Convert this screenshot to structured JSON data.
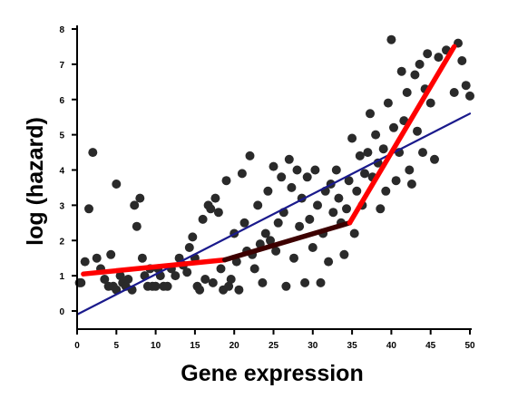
{
  "chart_data": {
    "type": "scatter",
    "xlabel": "Gene expression",
    "ylabel": "log (hazard)",
    "xlim": [
      0,
      50
    ],
    "ylim": [
      -0.5,
      8
    ],
    "x_ticks": [
      0,
      5,
      10,
      15,
      20,
      25,
      30,
      35,
      40,
      45,
      50
    ],
    "y_ticks": [
      0,
      1,
      2,
      3,
      4,
      5,
      6,
      7,
      8
    ],
    "grid": false,
    "legend": "none",
    "points": [
      [
        0.3,
        0.8
      ],
      [
        0.5,
        0.8
      ],
      [
        1.0,
        1.4
      ],
      [
        1.5,
        2.9
      ],
      [
        2.0,
        4.5
      ],
      [
        2.5,
        1.5
      ],
      [
        3.0,
        1.2
      ],
      [
        3.5,
        0.9
      ],
      [
        4.0,
        0.7
      ],
      [
        4.3,
        1.6
      ],
      [
        4.6,
        0.7
      ],
      [
        5.0,
        0.6
      ],
      [
        5.0,
        3.6
      ],
      [
        5.5,
        1.0
      ],
      [
        5.8,
        0.8
      ],
      [
        6.2,
        0.7
      ],
      [
        6.5,
        0.9
      ],
      [
        7.0,
        0.6
      ],
      [
        7.3,
        3.0
      ],
      [
        7.6,
        2.4
      ],
      [
        8.0,
        3.2
      ],
      [
        8.3,
        1.5
      ],
      [
        8.6,
        1.0
      ],
      [
        9.0,
        0.7
      ],
      [
        9.3,
        1.2
      ],
      [
        9.6,
        0.7
      ],
      [
        10.0,
        0.7
      ],
      [
        10.3,
        1.2
      ],
      [
        10.6,
        1.0
      ],
      [
        11.0,
        0.7
      ],
      [
        11.5,
        0.7
      ],
      [
        12.0,
        1.2
      ],
      [
        12.5,
        1.0
      ],
      [
        13.0,
        1.5
      ],
      [
        13.5,
        1.3
      ],
      [
        14.0,
        1.1
      ],
      [
        14.3,
        1.8
      ],
      [
        14.7,
        2.1
      ],
      [
        15.0,
        1.5
      ],
      [
        15.3,
        0.7
      ],
      [
        15.6,
        0.6
      ],
      [
        16.0,
        2.6
      ],
      [
        16.3,
        0.9
      ],
      [
        16.7,
        3.0
      ],
      [
        17.0,
        2.9
      ],
      [
        17.3,
        0.8
      ],
      [
        17.6,
        3.2
      ],
      [
        18.0,
        2.8
      ],
      [
        18.3,
        1.2
      ],
      [
        18.6,
        0.6
      ],
      [
        19.0,
        3.7
      ],
      [
        19.3,
        0.7
      ],
      [
        19.6,
        0.9
      ],
      [
        20.0,
        2.2
      ],
      [
        20.3,
        1.4
      ],
      [
        20.6,
        0.6
      ],
      [
        21.0,
        3.9
      ],
      [
        21.3,
        2.5
      ],
      [
        21.6,
        1.7
      ],
      [
        22.0,
        4.4
      ],
      [
        22.3,
        1.6
      ],
      [
        22.6,
        1.2
      ],
      [
        23.0,
        3.0
      ],
      [
        23.3,
        1.9
      ],
      [
        23.6,
        0.8
      ],
      [
        24.0,
        2.2
      ],
      [
        24.3,
        3.4
      ],
      [
        24.6,
        2.0
      ],
      [
        25.0,
        4.1
      ],
      [
        25.3,
        1.7
      ],
      [
        25.6,
        2.5
      ],
      [
        26.0,
        3.8
      ],
      [
        26.3,
        2.8
      ],
      [
        26.6,
        0.7
      ],
      [
        27.0,
        4.3
      ],
      [
        27.3,
        3.5
      ],
      [
        27.6,
        1.5
      ],
      [
        28.0,
        4.0
      ],
      [
        28.3,
        2.4
      ],
      [
        28.6,
        3.2
      ],
      [
        29.0,
        0.8
      ],
      [
        29.3,
        3.8
      ],
      [
        29.6,
        2.6
      ],
      [
        30.0,
        1.8
      ],
      [
        30.3,
        4.0
      ],
      [
        30.6,
        3.0
      ],
      [
        31.0,
        0.8
      ],
      [
        31.3,
        2.2
      ],
      [
        31.6,
        3.4
      ],
      [
        32.0,
        1.4
      ],
      [
        32.3,
        3.6
      ],
      [
        32.6,
        2.8
      ],
      [
        33.0,
        4.0
      ],
      [
        33.3,
        3.2
      ],
      [
        33.6,
        2.5
      ],
      [
        34.0,
        1.6
      ],
      [
        34.3,
        2.9
      ],
      [
        34.6,
        3.7
      ],
      [
        35.0,
        4.9
      ],
      [
        35.3,
        2.2
      ],
      [
        35.6,
        3.4
      ],
      [
        36.0,
        4.4
      ],
      [
        36.3,
        3.0
      ],
      [
        36.6,
        3.9
      ],
      [
        37.0,
        4.5
      ],
      [
        37.3,
        5.6
      ],
      [
        37.6,
        3.8
      ],
      [
        38.0,
        5.0
      ],
      [
        38.3,
        4.2
      ],
      [
        38.6,
        2.9
      ],
      [
        39.0,
        4.6
      ],
      [
        39.3,
        3.4
      ],
      [
        39.6,
        5.9
      ],
      [
        40.0,
        7.7
      ],
      [
        40.3,
        5.2
      ],
      [
        40.6,
        3.7
      ],
      [
        41.0,
        4.5
      ],
      [
        41.3,
        6.8
      ],
      [
        41.6,
        5.4
      ],
      [
        42.0,
        6.2
      ],
      [
        42.3,
        4.0
      ],
      [
        42.6,
        3.6
      ],
      [
        43.0,
        6.7
      ],
      [
        43.3,
        5.1
      ],
      [
        43.6,
        7.0
      ],
      [
        44.0,
        4.5
      ],
      [
        44.3,
        6.3
      ],
      [
        44.6,
        7.3
      ],
      [
        45.0,
        5.9
      ],
      [
        45.5,
        4.3
      ],
      [
        46.0,
        7.2
      ],
      [
        47.0,
        7.4
      ],
      [
        48.0,
        6.2
      ],
      [
        48.5,
        7.6
      ],
      [
        49.0,
        7.1
      ],
      [
        49.5,
        6.4
      ],
      [
        50.0,
        6.1
      ]
    ],
    "series": [
      {
        "color": "#1a1a8c",
        "points": [
          [
            0,
            -0.1
          ],
          [
            50,
            5.6
          ]
        ]
      },
      {
        "color": "#ff0000",
        "points": [
          [
            0.8,
            1.05
          ],
          [
            18.8,
            1.45
          ]
        ]
      },
      {
        "color": "#3d0000",
        "points": [
          [
            18.8,
            1.45
          ],
          [
            34.7,
            2.5
          ]
        ]
      },
      {
        "color": "#ff0000",
        "points": [
          [
            34.7,
            2.5
          ],
          [
            48.0,
            7.5
          ]
        ]
      }
    ],
    "colors": {
      "points": "#2a2a2a",
      "axis": "#000000"
    }
  }
}
